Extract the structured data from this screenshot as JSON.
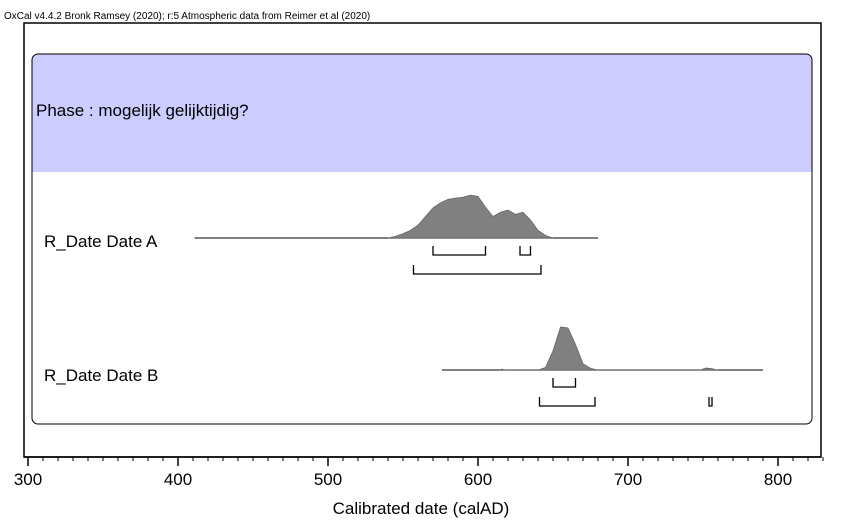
{
  "credit": "OxCal v4.4.2 Bronk Ramsey (2020); r:5 Atmospheric data from Reimer et al (2020)",
  "colors": {
    "phase_fill": "#ccccff",
    "distribution_fill": "#808080",
    "axis": "#000000"
  },
  "chart_data": {
    "type": "area",
    "xlabel": "Calibrated date (calAD)",
    "xlim": [
      300,
      830
    ],
    "ticks": [
      300,
      400,
      500,
      600,
      700,
      800
    ],
    "minor_tick_step": 10,
    "phase": {
      "label": "Phase : mogelijk gelijktijdig?"
    },
    "series": [
      {
        "name": "R_Date Date A",
        "baseline_range": [
          411,
          680
        ],
        "x": [
          540,
          545,
          550,
          555,
          560,
          565,
          570,
          575,
          580,
          585,
          590,
          595,
          600,
          605,
          610,
          615,
          620,
          625,
          630,
          635,
          640,
          645,
          650
        ],
        "y": [
          0,
          0.04,
          0.1,
          0.18,
          0.3,
          0.5,
          0.7,
          0.82,
          0.9,
          0.93,
          0.95,
          1.0,
          0.97,
          0.72,
          0.5,
          0.6,
          0.65,
          0.55,
          0.6,
          0.42,
          0.18,
          0.06,
          0
        ],
        "ranges_68": [
          [
            570,
            605
          ],
          [
            628,
            635
          ]
        ],
        "ranges_95": [
          [
            557,
            642
          ]
        ]
      },
      {
        "name": "R_Date Date B",
        "baseline_range": [
          576,
          790
        ],
        "x": [
          614,
          616,
          618,
          640,
          645,
          650,
          655,
          660,
          665,
          670,
          675,
          680,
          748,
          752,
          756,
          760
        ],
        "y": [
          0,
          0.02,
          0,
          0,
          0.06,
          0.45,
          1.0,
          0.98,
          0.6,
          0.15,
          0.04,
          0,
          0,
          0.05,
          0.03,
          0
        ],
        "ranges_68": [
          [
            650,
            665
          ]
        ],
        "ranges_95": [
          [
            641,
            678
          ],
          [
            754,
            756
          ]
        ]
      }
    ]
  }
}
